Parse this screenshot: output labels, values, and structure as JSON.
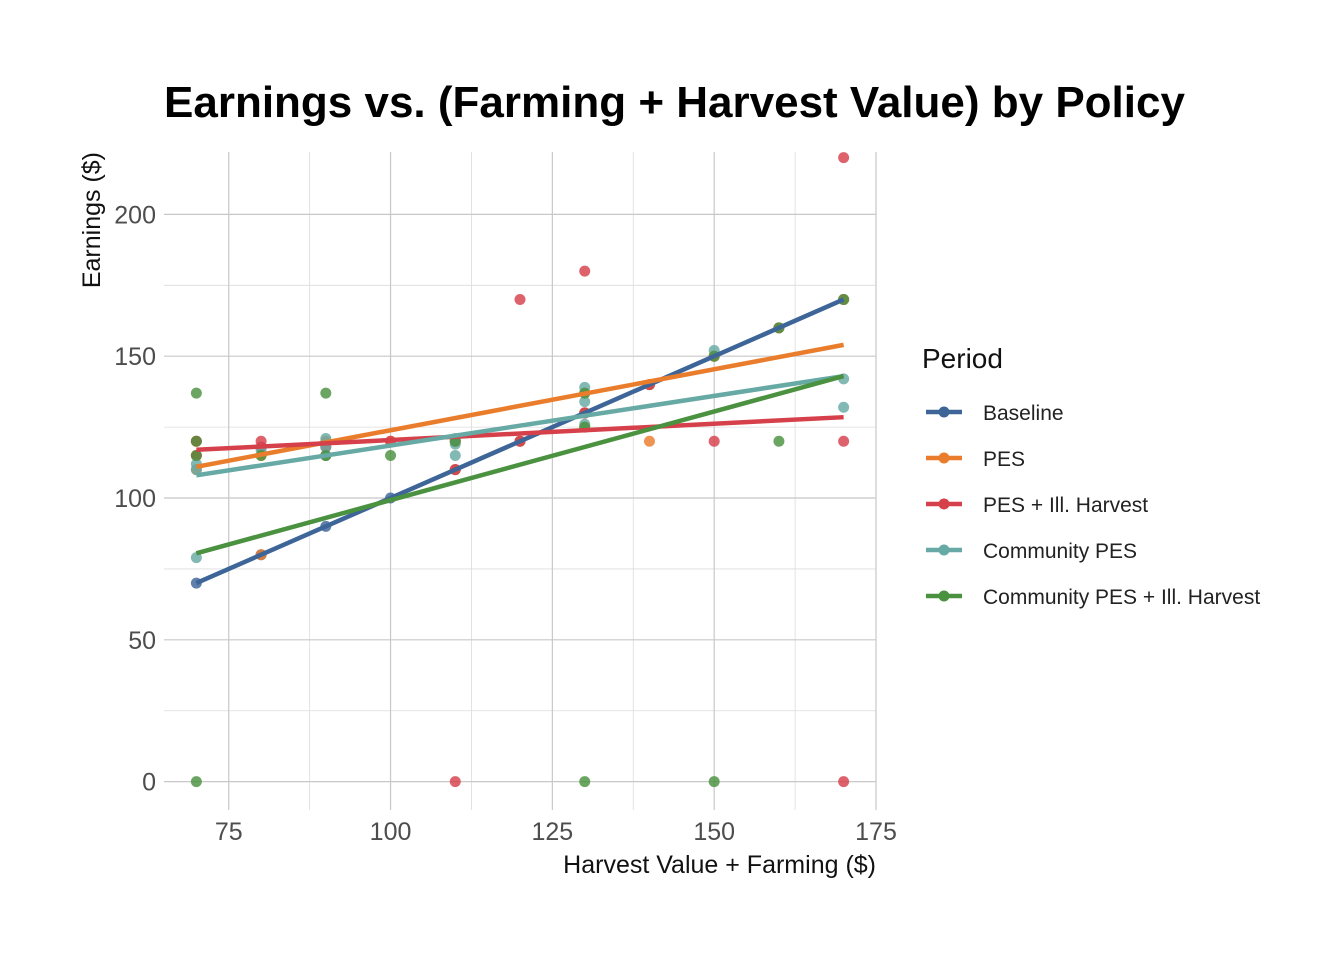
{
  "chart_data": {
    "type": "scatter",
    "title": "Earnings vs. (Farming + Harvest Value) by Policy",
    "xlabel": "Harvest Value + Farming ($)",
    "ylabel": "Earnings ($)",
    "xlim": [
      65,
      175
    ],
    "ylim": [
      -10,
      222
    ],
    "xticks": [
      75,
      100,
      125,
      150,
      175
    ],
    "yticks": [
      0,
      50,
      100,
      150,
      200
    ],
    "grid": true,
    "legend": {
      "title": "Period",
      "placement": "right"
    },
    "series": [
      {
        "name": "Baseline",
        "color": "#3d6598",
        "points": [
          [
            70,
            70
          ],
          [
            80,
            80
          ],
          [
            90,
            90
          ],
          [
            100,
            100
          ],
          [
            110,
            110
          ],
          [
            120,
            120
          ],
          [
            130,
            130
          ],
          [
            140,
            140
          ],
          [
            150,
            150
          ],
          [
            160,
            160
          ],
          [
            170,
            170
          ]
        ],
        "fit": [
          [
            70,
            70
          ],
          [
            170,
            170
          ]
        ]
      },
      {
        "name": "PES",
        "color": "#ea7d2c",
        "points": [
          [
            70,
            110
          ],
          [
            70,
            115
          ],
          [
            70,
            120
          ],
          [
            80,
            80
          ],
          [
            80,
            115
          ],
          [
            90,
            115
          ],
          [
            90,
            120
          ],
          [
            100,
            120
          ],
          [
            110,
            110
          ],
          [
            110,
            120
          ],
          [
            120,
            120
          ],
          [
            130,
            125
          ],
          [
            130,
            130
          ],
          [
            130,
            137
          ],
          [
            140,
            120
          ],
          [
            140,
            140
          ],
          [
            150,
            150
          ],
          [
            160,
            160
          ],
          [
            170,
            170
          ]
        ],
        "fit": [
          [
            70,
            111
          ],
          [
            170,
            154
          ]
        ]
      },
      {
        "name": "PES + Ill. Harvest",
        "color": "#d6404a",
        "points": [
          [
            70,
            115
          ],
          [
            70,
            120
          ],
          [
            80,
            118
          ],
          [
            80,
            120
          ],
          [
            90,
            118
          ],
          [
            100,
            120
          ],
          [
            110,
            0
          ],
          [
            110,
            110
          ],
          [
            110,
            120
          ],
          [
            120,
            120
          ],
          [
            120,
            170
          ],
          [
            130,
            130
          ],
          [
            130,
            180
          ],
          [
            140,
            140
          ],
          [
            150,
            120
          ],
          [
            170,
            0
          ],
          [
            170,
            120
          ],
          [
            170,
            220
          ]
        ],
        "fit": [
          [
            70,
            117
          ],
          [
            170,
            128.5
          ]
        ]
      },
      {
        "name": "Community PES",
        "color": "#67a9a4",
        "points": [
          [
            70,
            79
          ],
          [
            70,
            110
          ],
          [
            70,
            112
          ],
          [
            80,
            117
          ],
          [
            90,
            115
          ],
          [
            90,
            118
          ],
          [
            90,
            121
          ],
          [
            110,
            115
          ],
          [
            110,
            119
          ],
          [
            110,
            121
          ],
          [
            130,
            126
          ],
          [
            130,
            134
          ],
          [
            130,
            139
          ],
          [
            150,
            152
          ],
          [
            170,
            132
          ],
          [
            170,
            142
          ]
        ],
        "fit": [
          [
            70,
            108
          ],
          [
            170,
            143
          ]
        ]
      },
      {
        "name": "Community PES + Ill. Harvest",
        "color": "#4a9140",
        "points": [
          [
            70,
            0
          ],
          [
            70,
            115
          ],
          [
            70,
            120
          ],
          [
            70,
            137
          ],
          [
            80,
            115
          ],
          [
            90,
            115
          ],
          [
            90,
            137
          ],
          [
            100,
            115
          ],
          [
            110,
            120
          ],
          [
            130,
            0
          ],
          [
            130,
            125
          ],
          [
            130,
            137
          ],
          [
            150,
            0
          ],
          [
            150,
            150
          ],
          [
            160,
            120
          ],
          [
            160,
            160
          ],
          [
            170,
            170
          ]
        ],
        "fit": [
          [
            70,
            80.5
          ],
          [
            170,
            143
          ]
        ]
      }
    ]
  }
}
